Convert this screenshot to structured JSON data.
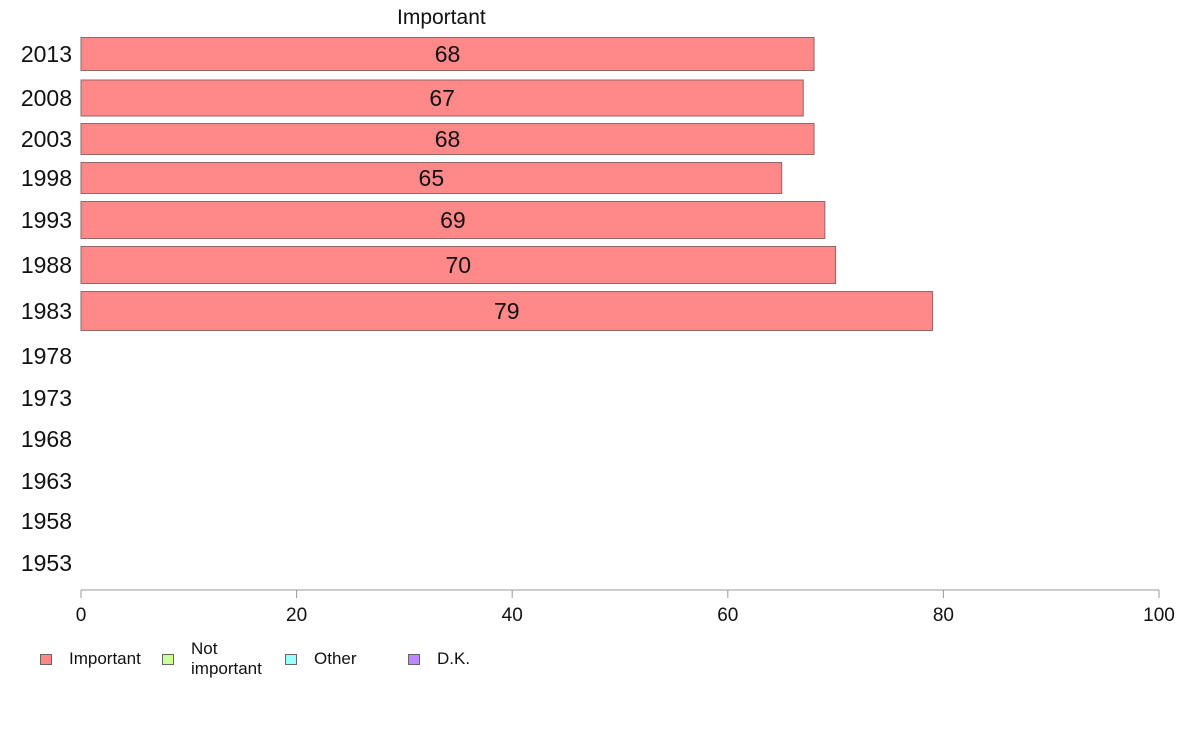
{
  "chart_data": {
    "type": "bar",
    "orientation": "horizontal",
    "title": "Important",
    "categories": [
      "2013",
      "2008",
      "2003",
      "1998",
      "1993",
      "1988",
      "1983",
      "1978",
      "1973",
      "1968",
      "1963",
      "1958",
      "1953"
    ],
    "series": [
      {
        "name": "Important",
        "color": "#ff8888",
        "values": [
          68,
          67,
          68,
          65,
          69,
          70,
          79,
          null,
          null,
          null,
          null,
          null,
          null
        ]
      }
    ],
    "data_labels": [
      "68",
      "67",
      "68",
      "65",
      "69",
      "70",
      "79",
      "",
      "",
      "",
      "",
      "",
      ""
    ],
    "xlim": [
      0,
      100
    ],
    "xticks": [
      0,
      20,
      40,
      60,
      80,
      100
    ],
    "xtick_labels": [
      "0",
      "20",
      "40",
      "60",
      "80",
      "100"
    ],
    "grid": false,
    "legend": {
      "position": "bottom-left",
      "items": [
        {
          "label": "Important",
          "color": "#ff8888"
        },
        {
          "label": "Not\nimportant",
          "color": "#ccff99"
        },
        {
          "label": "Other",
          "color": "#99ffff"
        },
        {
          "label": "D.K.",
          "color": "#bb88ff"
        }
      ]
    }
  }
}
